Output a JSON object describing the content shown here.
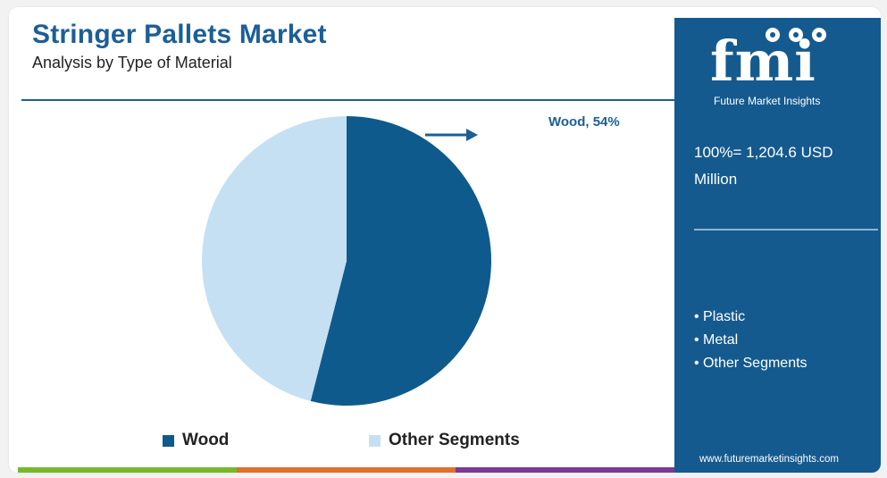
{
  "header": {
    "title": "Stringer Pallets Market",
    "subtitle": "Analysis by Type of Material"
  },
  "chart_data": {
    "type": "pie",
    "title": "Stringer Pallets Market",
    "subtitle": "Analysis by Type of Material",
    "slices": [
      {
        "label": "Wood",
        "value": 54,
        "color": "#0f5a8c"
      },
      {
        "label": "Other Segments",
        "value": 46,
        "color": "#c5e0f2"
      }
    ],
    "callout": "Wood, 54%",
    "legend": [
      "Wood",
      "Other Segments"
    ],
    "legend_position": "bottom"
  },
  "legend": {
    "wood": "Wood",
    "other": "Other Segments"
  },
  "panel": {
    "logo": "fmi",
    "brand": "Future Market Insights",
    "total": "100%= 1,204.6 USD Million",
    "other_segments": [
      "• Plastic",
      "• Metal",
      "• Other Segments"
    ],
    "url": "www.futuremarketinsights.com"
  },
  "colors": {
    "primary": "#1c5f96",
    "panel": "#155a8f",
    "wood": "#0f5a8c",
    "other": "#c5e0f2",
    "bar": [
      "#76b82a",
      "#e0702b",
      "#7a3a91"
    ]
  }
}
